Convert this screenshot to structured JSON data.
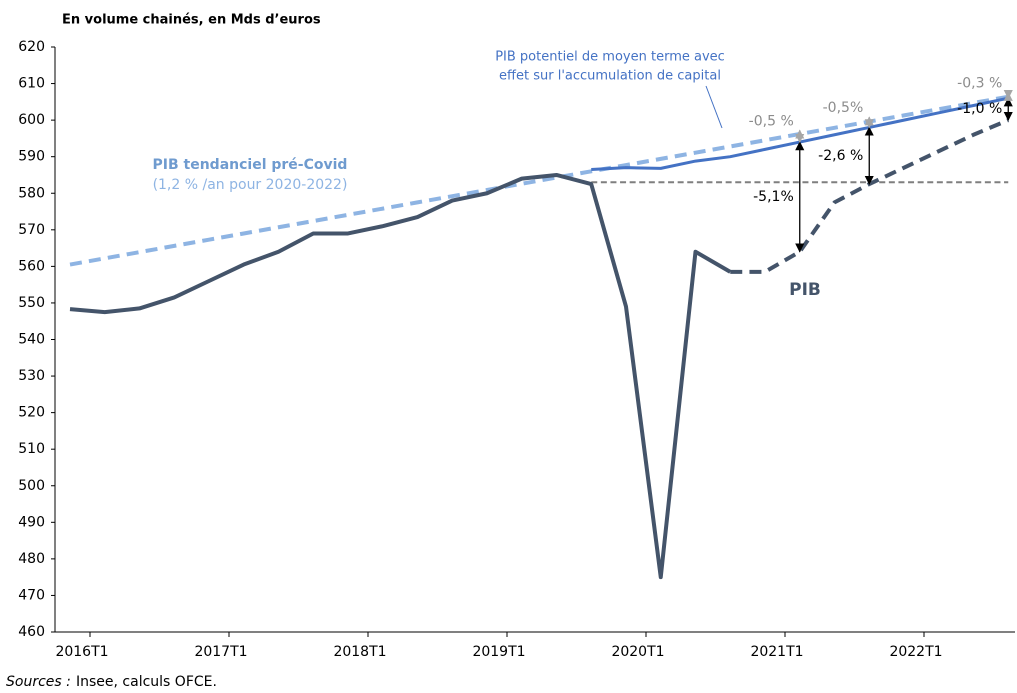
{
  "chart_data": {
    "type": "line",
    "title": "En volume chainés, en Mds d’euros",
    "source_label": "Sources :",
    "source": "Insee, calculs OFCE.",
    "categories": [
      "2016T1",
      null,
      null,
      null,
      "2017T1",
      null,
      null,
      null,
      "2018T1",
      null,
      null,
      null,
      "2019T1",
      null,
      null,
      null,
      "2020T1",
      null,
      null,
      null,
      "2021T1",
      null,
      null,
      null,
      "2022T1",
      null,
      null,
      null
    ],
    "ylim": [
      460,
      620
    ],
    "yticks": [
      460,
      470,
      480,
      490,
      500,
      510,
      520,
      530,
      540,
      550,
      560,
      570,
      580,
      590,
      600,
      610,
      620
    ],
    "grid": false,
    "series": [
      {
        "color": "#8eb4e3",
        "dashed": true,
        "width": 4,
        "values": [
          560.5,
          562.2,
          563.9,
          565.6,
          567.3,
          569.0,
          570.7,
          572.4,
          574.1,
          575.8,
          577.5,
          579.2,
          580.9,
          582.6,
          584.3,
          586.0,
          587.7,
          589.4,
          591.1,
          592.8,
          594.5,
          596.2,
          597.9,
          599.6,
          601.3,
          603.0,
          604.7,
          606.4
        ]
      },
      {
        "color": "#7f7f7f",
        "dashed": true,
        "width": 2,
        "values": [
          null,
          null,
          null,
          null,
          null,
          null,
          null,
          null,
          null,
          null,
          null,
          null,
          null,
          null,
          null,
          583,
          583,
          583,
          583,
          583,
          583,
          583,
          583,
          583,
          583,
          583,
          583,
          583
        ]
      },
      {
        "color": "#4472c4",
        "dashed": false,
        "width": 3,
        "values": [
          null,
          null,
          null,
          null,
          null,
          null,
          null,
          null,
          null,
          null,
          null,
          null,
          null,
          null,
          null,
          586.5,
          587,
          586.8,
          588.8,
          590,
          592,
          594,
          596,
          598,
          600,
          602,
          604,
          606
        ]
      },
      {
        "name": "PIB",
        "color": "#44546a",
        "dashed": false,
        "width": 4,
        "values": [
          548.3,
          547.5,
          548.5,
          551.5,
          556,
          560.5,
          564,
          569,
          569,
          571,
          573.5,
          578,
          580,
          584,
          585,
          582.5,
          549,
          475,
          564,
          558.5,
          null,
          null,
          null,
          null,
          null,
          null,
          null,
          null
        ]
      },
      {
        "color": "#44546a",
        "dashed": true,
        "width": 4,
        "values": [
          null,
          null,
          null,
          null,
          null,
          null,
          null,
          null,
          null,
          null,
          null,
          null,
          null,
          null,
          null,
          null,
          null,
          null,
          null,
          558.5,
          558.5,
          564,
          577.5,
          582.5,
          587,
          591.5,
          596,
          600
        ]
      }
    ],
    "labels": {
      "potential": [
        "PIB potentiel de moyen terme avec",
        "effet sur l'accumulation de capital"
      ],
      "trend": "PIB  tendanciel  pré-Covid",
      "trend_note": "(1,2 % /an  pour 2020-2022)"
    },
    "annotations": [
      {
        "text": "-5,1%",
        "x": 21,
        "y1": 564,
        "y2": 594,
        "color": "#000000"
      },
      {
        "text": "-2,6 %",
        "x": 23,
        "y1": 582.5,
        "y2": 598,
        "color": "#000000"
      },
      {
        "text": "-1,0 %",
        "x": 27,
        "y1": 600,
        "y2": 606,
        "color": "#000000"
      },
      {
        "text": "-0,5 %",
        "x": 21,
        "y1": 594,
        "y2": 597.2,
        "color": "#a6a6a6"
      },
      {
        "text": "-0,5%",
        "x": 23,
        "y1": 598,
        "y2": 600.8,
        "color": "#a6a6a6"
      },
      {
        "text": "-0,3 %",
        "x": 27,
        "y1": 606,
        "y2": 607.5,
        "color": "#a6a6a6"
      }
    ]
  }
}
